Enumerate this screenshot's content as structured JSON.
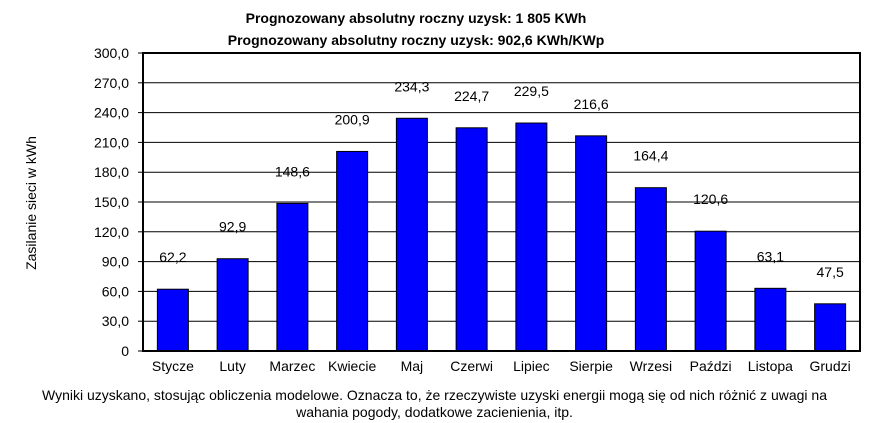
{
  "chart_data": {
    "type": "bar",
    "title": "Prognozowany  absolutny  roczny  uzysk:  1 805  KWh",
    "subtitle": "Prognozowany absolutny roczny uzysk: 902,6 KWh/KWp",
    "ylabel": "Zasilanie sieci w kWh",
    "xlabel": "",
    "categories": [
      "Stycze",
      "Luty",
      "Marzec",
      "Kwiecie",
      "Maj",
      "Czerwi",
      "Lipiec",
      "Sierpie",
      "Wrzesi",
      "Paździ",
      "Listopa",
      "Grudzi"
    ],
    "values": [
      62.2,
      92.9,
      148.6,
      200.9,
      234.3,
      224.7,
      229.5,
      216.6,
      164.4,
      120.6,
      63.1,
      47.5
    ],
    "value_labels": [
      "62,2",
      "92,9",
      "148,6",
      "200,9",
      "234,3",
      "224,7",
      "229,5",
      "216,6",
      "164,4",
      "120,6",
      "63,1",
      "47,5"
    ],
    "yticks": [
      0,
      30,
      60,
      90,
      120,
      150,
      180,
      210,
      240,
      270,
      300
    ],
    "ytick_labels": [
      "0",
      "30,0",
      "60,0",
      "90,0",
      "120,0",
      "150,0",
      "180,0",
      "210,0",
      "240,0",
      "270,0",
      "300,0"
    ],
    "ylim": [
      0,
      300
    ],
    "grid": true,
    "legend": "none",
    "colors": {
      "bar_fill": "#0000FF",
      "bar_edge": "#000000",
      "grid": "#000000",
      "background": "#FFFFFF"
    }
  },
  "footnote": {
    "line1": "Wyniki uzyskano, stosując obliczenia modelowe. Oznacza to, że rzeczywiste uzyski energii mogą się od nich różnić z uwagi na",
    "line2": "wahania pogody, dodatkowe zacienienia, itp."
  }
}
